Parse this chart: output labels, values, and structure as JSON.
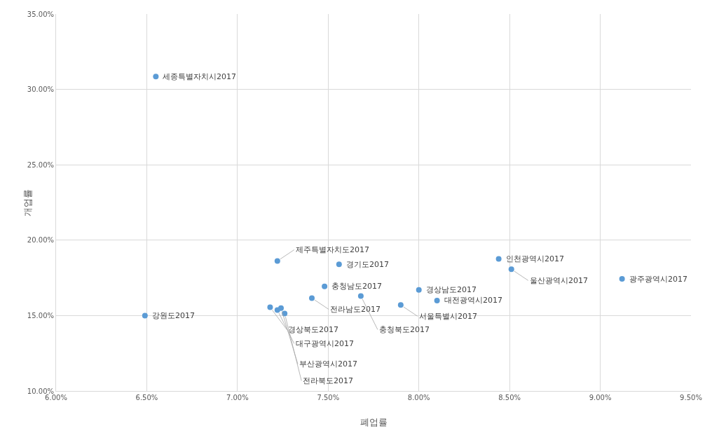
{
  "chart_data": {
    "type": "scatter",
    "xlabel": "폐업률",
    "ylabel": "개업률",
    "x": [
      6.55,
      6.49,
      7.22,
      7.56,
      7.48,
      7.41,
      7.68,
      7.9,
      8.0,
      8.1,
      8.44,
      8.51,
      9.12,
      7.18,
      7.22,
      7.24,
      7.26
    ],
    "series": [
      {
        "color": "#5b9bd5",
        "values": [
          30.85,
          15.0,
          18.62,
          18.4,
          16.93,
          16.16,
          16.3,
          15.7,
          16.7,
          16.0,
          18.76,
          18.07,
          17.43,
          15.55,
          15.37,
          15.5,
          15.14
        ]
      }
    ],
    "annotations": [
      {
        "text": "세종특별자치시2017",
        "x": 6.55,
        "y": 30.85
      },
      {
        "text": "강원도2017",
        "x": 6.49,
        "y": 15.0
      },
      {
        "text": "제주특별자치도2017",
        "x": 7.22,
        "y": 18.62
      },
      {
        "text": "경기도2017",
        "x": 7.56,
        "y": 18.4
      },
      {
        "text": "충청남도2017",
        "x": 7.48,
        "y": 16.93
      },
      {
        "text": "전라남도2017",
        "x": 7.41,
        "y": 16.16
      },
      {
        "text": "충청북도2017",
        "x": 7.68,
        "y": 16.3
      },
      {
        "text": "서울특별시2017",
        "x": 7.9,
        "y": 15.7
      },
      {
        "text": "경상남도2017",
        "x": 8.0,
        "y": 16.7
      },
      {
        "text": "대전광역시2017",
        "x": 8.1,
        "y": 16.0
      },
      {
        "text": "인천광역시2017",
        "x": 8.44,
        "y": 18.76
      },
      {
        "text": "울산광역시2017",
        "x": 8.51,
        "y": 18.07
      },
      {
        "text": "광주광역시2017",
        "x": 9.12,
        "y": 17.43
      },
      {
        "text": "경상북도2017",
        "x": 7.18,
        "y": 15.55
      },
      {
        "text": "대구광역시2017",
        "x": 7.22,
        "y": 15.37
      },
      {
        "text": "부산광역시2017",
        "x": 7.24,
        "y": 15.5
      },
      {
        "text": "전라북도2017",
        "x": 7.26,
        "y": 15.14
      }
    ],
    "xlim": [
      6,
      9.5
    ],
    "xticks": [
      {
        "value": 6,
        "label": "6.00%"
      },
      {
        "value": 6.5,
        "label": "6.50%"
      },
      {
        "value": 7,
        "label": "7.00%"
      },
      {
        "value": 7.5,
        "label": "7.50%"
      },
      {
        "value": 8,
        "label": "8.00%"
      },
      {
        "value": 8.5,
        "label": "8.50%"
      },
      {
        "value": 9,
        "label": "9.00%"
      },
      {
        "value": 9.5,
        "label": "9.50%"
      }
    ],
    "ylim": [
      10,
      35
    ],
    "yticks": [
      {
        "value": 10,
        "label": "10.00%"
      },
      {
        "value": 15,
        "label": "15.00%"
      },
      {
        "value": 20,
        "label": "20.00%"
      },
      {
        "value": 25,
        "label": "25.00%"
      },
      {
        "value": 30,
        "label": "30.00%"
      },
      {
        "value": 35,
        "label": "35.00%"
      }
    ],
    "grid": true,
    "marker": "circle",
    "legend": false
  }
}
